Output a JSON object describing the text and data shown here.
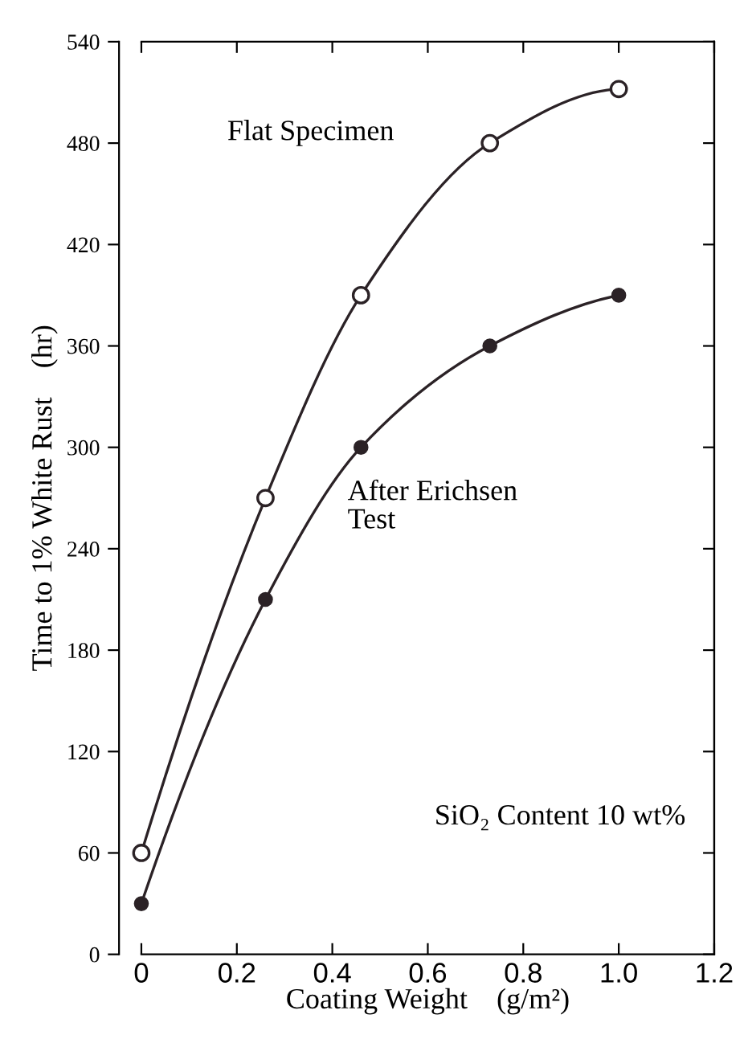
{
  "chart_data": {
    "type": "line",
    "xlabel": "Coating Weight    (g/m²)",
    "ylabel": "Time to 1% White Rust    (hr)",
    "xlim": [
      0,
      1.2
    ],
    "xticks": [
      0,
      {
        "value": 0.2,
        "label": "0.2"
      },
      {
        "value": 0.4,
        "label": "0.4"
      },
      {
        "value": 0.6,
        "label": "0.6"
      },
      {
        "value": 0.8,
        "label": "0.8"
      },
      {
        "value": 1.0,
        "label": "1.0"
      },
      {
        "value": 1.2,
        "label": "1.2"
      }
    ],
    "ylim": [
      0,
      540
    ],
    "yticks": [
      0,
      60,
      120,
      180,
      240,
      300,
      360,
      420,
      480,
      540
    ],
    "grid": false,
    "legend": false,
    "annotations": [
      "SiO₂ Content 10 wt%"
    ],
    "series": [
      {
        "name": "Flat Specimen",
        "color": "#2b2226",
        "marker": "circle",
        "x": [
          0,
          0.26,
          0.46,
          0.73,
          1.0
        ],
        "values": [
          60,
          270,
          390,
          480,
          512
        ]
      },
      {
        "name": "After Erichsen\nTest",
        "color": "#2b2226",
        "marker": "circle",
        "x": [
          0,
          0.26,
          0.46,
          0.73,
          1.0
        ],
        "values": [
          30,
          210,
          300,
          360,
          390
        ]
      }
    ]
  }
}
